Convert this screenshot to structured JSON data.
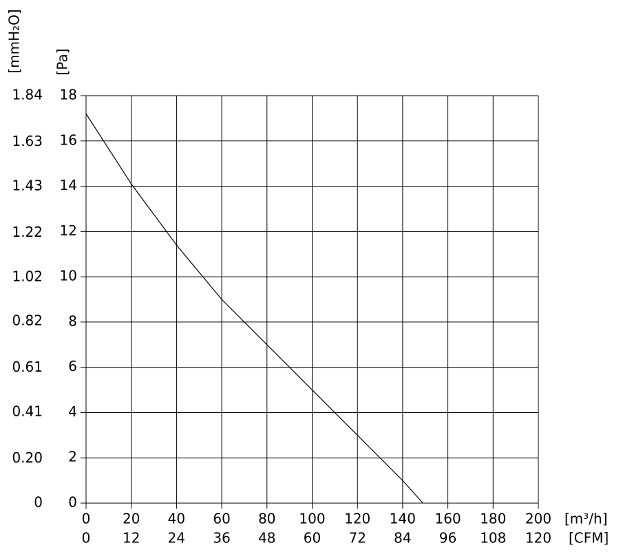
{
  "chart_data": {
    "type": "line",
    "xlabel": "[m³/h]",
    "x2label": "[CFM]",
    "ylabel": "[Pa]",
    "y2label": "[mmH₂O]",
    "x": [
      0,
      20,
      40,
      60,
      70,
      80,
      100,
      120,
      140,
      149
    ],
    "series": [
      {
        "name": "Pa",
        "color": "#000000",
        "values": [
          17.2,
          14.1,
          11.4,
          9.0,
          8.0,
          7.0,
          5.0,
          3.0,
          1.0,
          0
        ]
      }
    ],
    "xlim": [
      0,
      200
    ],
    "xticks": [
      0,
      20,
      40,
      60,
      80,
      100,
      120,
      140,
      160,
      180,
      200
    ],
    "x2lim": [
      0,
      120
    ],
    "x2ticks": [
      0,
      12,
      24,
      36,
      48,
      60,
      72,
      84,
      96,
      108,
      120
    ],
    "ylim": [
      0,
      18
    ],
    "yticks": [
      0,
      2,
      4,
      6,
      8,
      10,
      12,
      14,
      16,
      18
    ],
    "y2lim": [
      0,
      1.84
    ],
    "y2ticks": [
      0,
      {
        "value": 0.2,
        "label": "0.20"
      },
      0.41,
      0.61,
      0.82,
      1.02,
      1.22,
      1.43,
      1.63,
      1.84
    ],
    "grid": true
  }
}
